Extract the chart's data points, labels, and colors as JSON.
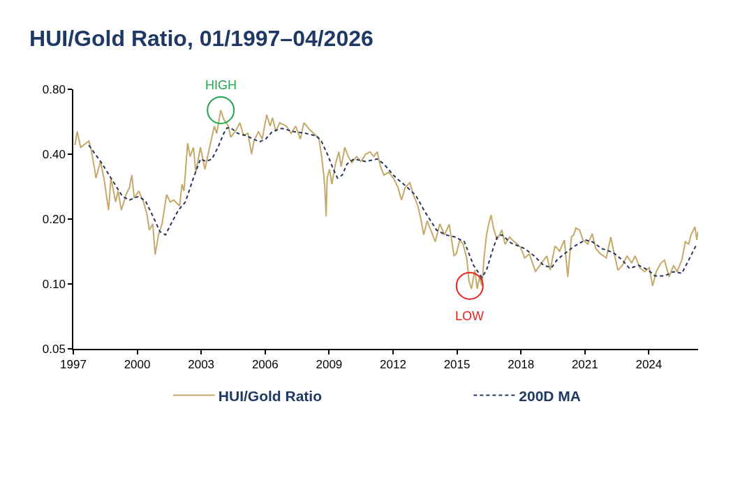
{
  "chart_data": {
    "type": "line",
    "title": "HUI/Gold Ratio, 01/1997–04/2026",
    "log": "y",
    "legend": "bottom",
    "xlim": [
      "1997-01-01",
      "2026-04-25"
    ],
    "xticks": [
      "1997",
      "2000",
      "2003",
      "2006",
      "2009",
      "2012",
      "2015",
      "2018",
      "2021",
      "2024"
    ],
    "ylim": [
      0.05,
      0.8
    ],
    "yticks": [
      0.05,
      {
        "value": 0.1,
        "label": "0.10"
      },
      {
        "value": 0.2,
        "label": "0.20"
      },
      {
        "value": 0.4,
        "label": "0.40"
      },
      {
        "value": 0.8,
        "label": "0.80"
      }
    ],
    "annotations": [
      {
        "text": "HIGH",
        "x": "2003-12-02",
        "y": 0.64
      },
      {
        "text": "LOW",
        "x": "2015-08-07",
        "y": 0.098
      }
    ],
    "series": [
      {
        "name": "HUI/Gold Ratio",
        "color": "#c4a96b",
        "line_style": "solid",
        "x": [
          "1997-01-28",
          "1997-03-09",
          "1997-05-07",
          "1997-09-24",
          "1997-11-03",
          "1998-01-02",
          "1998-01-23",
          "1998-04-12",
          "1998-06-09",
          "1998-08-28",
          "1998-10-08",
          "1998-12-27",
          "1999-02-07",
          "1999-04-05",
          "1999-06-24",
          "1999-08-21",
          "1999-10-01",
          "1999-11-11",
          "2000-01-28",
          "2000-04-19",
          "2000-06-17",
          "2000-07-26",
          "2000-09-24",
          "2000-11-03",
          "2001-01-01",
          "2001-03-02",
          "2001-05-18",
          "2001-07-19",
          "2001-09-17",
          "2001-12-27",
          "2002-02-07",
          "2002-03-13",
          "2002-05-14",
          "2002-06-24",
          "2002-08-21",
          "2002-10-01",
          "2002-12-20",
          "2003-03-06",
          "2003-05-25",
          "2003-08-14",
          "2003-09-24",
          "2003-12-02",
          "2004-01-23",
          "2004-04-12",
          "2004-05-21",
          "2004-08-07",
          "2004-10-26",
          "2004-12-24",
          "2005-03-13",
          "2005-05-14",
          "2005-06-24",
          "2005-09-09",
          "2005-11-11",
          "2006-01-28",
          "2006-03-27",
          "2006-05-07",
          "2006-07-05",
          "2006-09-06",
          "2007-01-01",
          "2007-03-20",
          "2007-06-09",
          "2007-08-28",
          "2007-10-26",
          "2008-02-03",
          "2008-05-14",
          "2008-07-12",
          "2008-08-21",
          "2008-10-01",
          "2008-10-19",
          "2008-11-11",
          "2008-11-28",
          "2009-01-08",
          "2009-02-18",
          "2009-04-19",
          "2009-06-17",
          "2009-07-26",
          "2009-09-27",
          "2009-11-25",
          "2010-01-26",
          "2010-04-15",
          "2010-07-01",
          "2010-09-20",
          "2010-12-06",
          "2011-02-03",
          "2011-04-05",
          "2011-06-02",
          "2011-07-29",
          "2011-10-19",
          "2012-01-08",
          "2012-03-27",
          "2012-05-25",
          "2012-07-26",
          "2012-10-15",
          "2012-12-13",
          "2013-03-02",
          "2013-04-29",
          "2013-06-09",
          "2013-08-07",
          "2013-10-26",
          "2013-12-24",
          "2014-03-13",
          "2014-06-02",
          "2014-08-21",
          "2014-11-11",
          "2014-12-20",
          "2015-02-18",
          "2015-04-15",
          "2015-06-17",
          "2015-07-26",
          "2015-09-06",
          "2015-11-03",
          "2015-12-13",
          "2016-01-23",
          "2016-03-02",
          "2016-04-12",
          "2016-05-21",
          "2016-06-27",
          "2016-08-07",
          "2016-09-17",
          "2016-11-18",
          "2017-02-07",
          "2017-04-05",
          "2017-06-20",
          "2017-09-09",
          "2017-12-20",
          "2018-03-06",
          "2018-05-25",
          "2018-09-06",
          "2018-11-21",
          "2019-03-20",
          "2019-05-18",
          "2019-08-07",
          "2019-10-26",
          "2020-01-15",
          "2020-03-13",
          "2020-05-14",
          "2020-06-24",
          "2020-07-29",
          "2020-10-01",
          "2020-11-28",
          "2021-02-18",
          "2021-05-07",
          "2021-07-05",
          "2021-09-24",
          "2022-01-02",
          "2022-03-20",
          "2022-05-18",
          "2022-07-19",
          "2022-10-05",
          "2022-12-24",
          "2023-03-13",
          "2023-05-10",
          "2023-07-29",
          "2023-10-19",
          "2024-01-08",
          "2024-03-06",
          "2024-05-07",
          "2024-07-26",
          "2024-09-24",
          "2024-12-13",
          "2025-02-28",
          "2025-04-29",
          "2025-07-19",
          "2025-09-17",
          "2025-11-14",
          "2025-12-24",
          "2026-03-02",
          "2026-04-01",
          "2026-04-22"
        ],
        "values": [
          0.44,
          0.51,
          0.43,
          0.46,
          0.42,
          0.34,
          0.31,
          0.37,
          0.31,
          0.22,
          0.31,
          0.24,
          0.27,
          0.22,
          0.26,
          0.28,
          0.32,
          0.25,
          0.27,
          0.24,
          0.21,
          0.178,
          0.19,
          0.137,
          0.169,
          0.19,
          0.26,
          0.24,
          0.245,
          0.23,
          0.29,
          0.27,
          0.45,
          0.39,
          0.43,
          0.33,
          0.43,
          0.34,
          0.43,
          0.54,
          0.5,
          0.64,
          0.58,
          0.54,
          0.48,
          0.51,
          0.56,
          0.49,
          0.5,
          0.4,
          0.46,
          0.51,
          0.47,
          0.61,
          0.54,
          0.59,
          0.51,
          0.56,
          0.54,
          0.5,
          0.54,
          0.47,
          0.56,
          0.52,
          0.49,
          0.47,
          0.4,
          0.32,
          0.28,
          0.206,
          0.31,
          0.34,
          0.29,
          0.36,
          0.41,
          0.35,
          0.43,
          0.39,
          0.365,
          0.39,
          0.37,
          0.4,
          0.41,
          0.39,
          0.41,
          0.35,
          0.32,
          0.33,
          0.31,
          0.28,
          0.245,
          0.28,
          0.295,
          0.26,
          0.23,
          0.196,
          0.169,
          0.196,
          0.173,
          0.157,
          0.19,
          0.169,
          0.189,
          0.135,
          0.138,
          0.16,
          0.153,
          0.132,
          0.103,
          0.095,
          0.116,
          0.095,
          0.108,
          0.098,
          0.135,
          0.169,
          0.19,
          0.209,
          0.182,
          0.16,
          0.178,
          0.153,
          0.165,
          0.157,
          0.149,
          0.132,
          0.138,
          0.114,
          0.122,
          0.135,
          0.116,
          0.15,
          0.142,
          0.16,
          0.108,
          0.165,
          0.169,
          0.182,
          0.178,
          0.16,
          0.153,
          0.171,
          0.146,
          0.138,
          0.132,
          0.165,
          0.138,
          0.116,
          0.122,
          0.135,
          0.125,
          0.135,
          0.119,
          0.114,
          0.119,
          0.098,
          0.114,
          0.125,
          0.129,
          0.108,
          0.122,
          0.114,
          0.129,
          0.157,
          0.153,
          0.169,
          0.184,
          0.16,
          0.175
        ]
      },
      {
        "name": "200D MA",
        "color": "#24365f",
        "line_style": "dashed",
        "x": [
          "1997-09-24",
          "1998-04-29",
          "1998-10-08",
          "1999-04-22",
          "1999-08-21",
          "2000-01-28",
          "2000-05-25",
          "2000-11-03",
          "2001-01-23",
          "2001-04-29",
          "2001-08-07",
          "2001-12-06",
          "2002-04-05",
          "2002-08-21",
          "2002-12-20",
          "2003-03-27",
          "2003-07-05",
          "2003-10-15",
          "2004-01-23",
          "2004-03-20",
          "2004-05-21",
          "2004-09-17",
          "2005-02-25",
          "2005-06-24",
          "2005-10-01",
          "2006-01-08",
          "2006-05-07",
          "2006-10-12",
          "2007-04-29",
          "2007-11-18",
          "2008-06-02",
          "2008-08-21",
          "2008-12-20",
          "2009-03-09",
          "2009-05-25",
          "2009-08-14",
          "2009-11-03",
          "2010-03-02",
          "2010-09-20",
          "2011-04-05",
          "2011-07-29",
          "2012-01-08",
          "2012-03-27",
          "2012-07-05",
          "2013-01-23",
          "2013-06-27",
          "2014-01-15",
          "2014-06-20",
          "2014-11-28",
          "2015-05-07",
          "2015-10-12",
          "2016-03-02",
          "2016-05-21",
          "2016-08-28",
          "2016-11-18",
          "2017-02-07",
          "2017-07-12",
          "2018-03-06",
          "2018-08-14",
          "2019-01-23",
          "2019-06-09",
          "2019-09-17",
          "2020-01-15",
          "2020-06-24",
          "2021-01-08",
          "2021-05-07",
          "2021-10-15",
          "2022-04-29",
          "2022-10-05",
          "2023-02-03",
          "2023-07-12",
          "2023-12-20",
          "2024-04-15",
          "2024-09-24",
          "2025-02-28",
          "2025-07-19",
          "2025-11-14",
          "2026-03-20"
        ],
        "values": [
          0.44,
          0.365,
          0.31,
          0.255,
          0.245,
          0.255,
          0.242,
          0.196,
          0.175,
          0.169,
          0.191,
          0.22,
          0.24,
          0.31,
          0.38,
          0.37,
          0.38,
          0.43,
          0.5,
          0.53,
          0.53,
          0.5,
          0.486,
          0.468,
          0.457,
          0.47,
          0.51,
          0.527,
          0.51,
          0.5,
          0.486,
          0.46,
          0.39,
          0.343,
          0.31,
          0.32,
          0.36,
          0.38,
          0.37,
          0.38,
          0.36,
          0.32,
          0.305,
          0.29,
          0.258,
          0.217,
          0.178,
          0.169,
          0.165,
          0.157,
          0.122,
          0.107,
          0.116,
          0.142,
          0.165,
          0.169,
          0.155,
          0.146,
          0.135,
          0.122,
          0.119,
          0.13,
          0.138,
          0.149,
          0.16,
          0.157,
          0.146,
          0.14,
          0.129,
          0.118,
          0.122,
          0.116,
          0.109,
          0.109,
          0.114,
          0.112,
          0.129,
          0.151
        ]
      }
    ]
  }
}
